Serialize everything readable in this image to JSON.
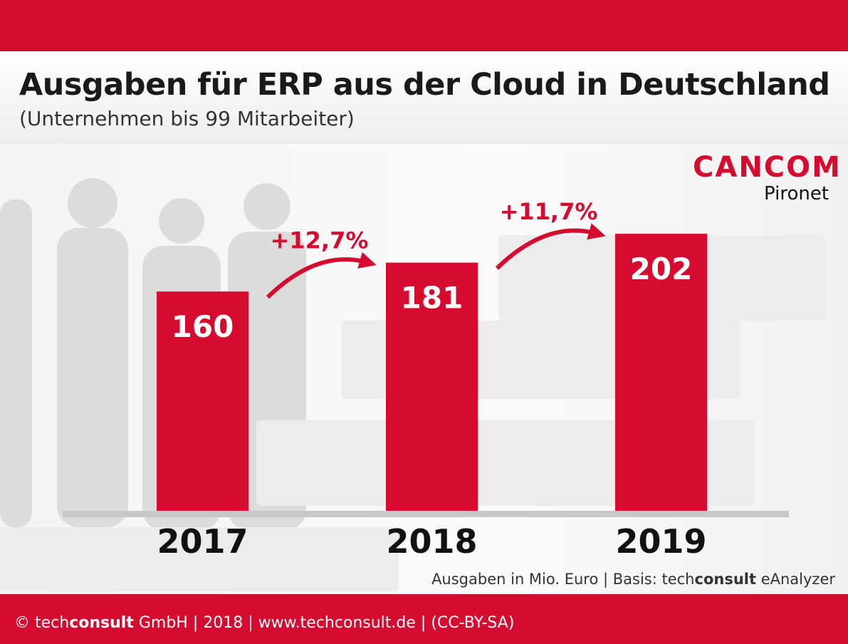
{
  "header": {
    "title": "Ausgaben für ERP aus der Cloud in Deutschland",
    "subtitle": "(Unternehmen bis 99 Mitarbeiter)"
  },
  "logo": {
    "brand": "CANCOM",
    "sub": "Pironet"
  },
  "source": {
    "prefix": "Ausgaben in Mio. Euro | Basis: tech",
    "bold": "consult",
    "suffix": " eAnalyzer"
  },
  "footer": {
    "prefix": "© tech",
    "bold": "consult",
    "suffix": " GmbH | 2018 | www.techconsult.de | (CC-BY-SA)"
  },
  "colors": {
    "bar": "#d50b30",
    "axis": "#c8c8c8",
    "brand": "#d50b30"
  },
  "chart_data": {
    "type": "bar",
    "categories": [
      "2017",
      "2018",
      "2019"
    ],
    "values": [
      160,
      181,
      202
    ],
    "unit": "Mio. Euro",
    "annotations": [
      {
        "from": "2017",
        "to": "2018",
        "label": "+12,7%"
      },
      {
        "from": "2018",
        "to": "2019",
        "label": "+11,7%"
      }
    ],
    "grid": false
  }
}
